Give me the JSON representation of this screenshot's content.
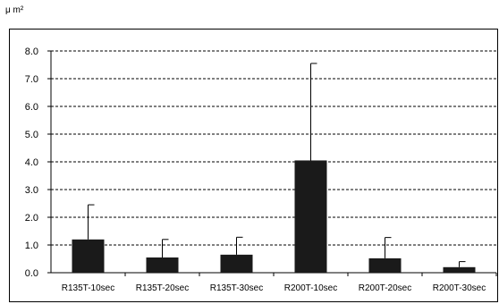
{
  "chart_data": {
    "type": "bar",
    "unit_label": "μ m²",
    "categories": [
      "R135T-10sec",
      "R135T-20sec",
      "R135T-30sec",
      "R200T-10sec",
      "R200T-20sec",
      "R200T-30sec"
    ],
    "values": [
      1.2,
      0.55,
      0.65,
      4.05,
      0.52,
      0.2
    ],
    "error_upper": [
      1.25,
      0.65,
      0.63,
      3.5,
      0.75,
      0.2
    ],
    "ylim": [
      0,
      8
    ],
    "yticks": [
      "0.0",
      "1.0",
      "2.0",
      "3.0",
      "4.0",
      "5.0",
      "6.0",
      "7.0",
      "8.0"
    ],
    "grid": true,
    "bar_color": "#1a1a1a",
    "title": "",
    "xlabel": "",
    "ylabel": ""
  }
}
